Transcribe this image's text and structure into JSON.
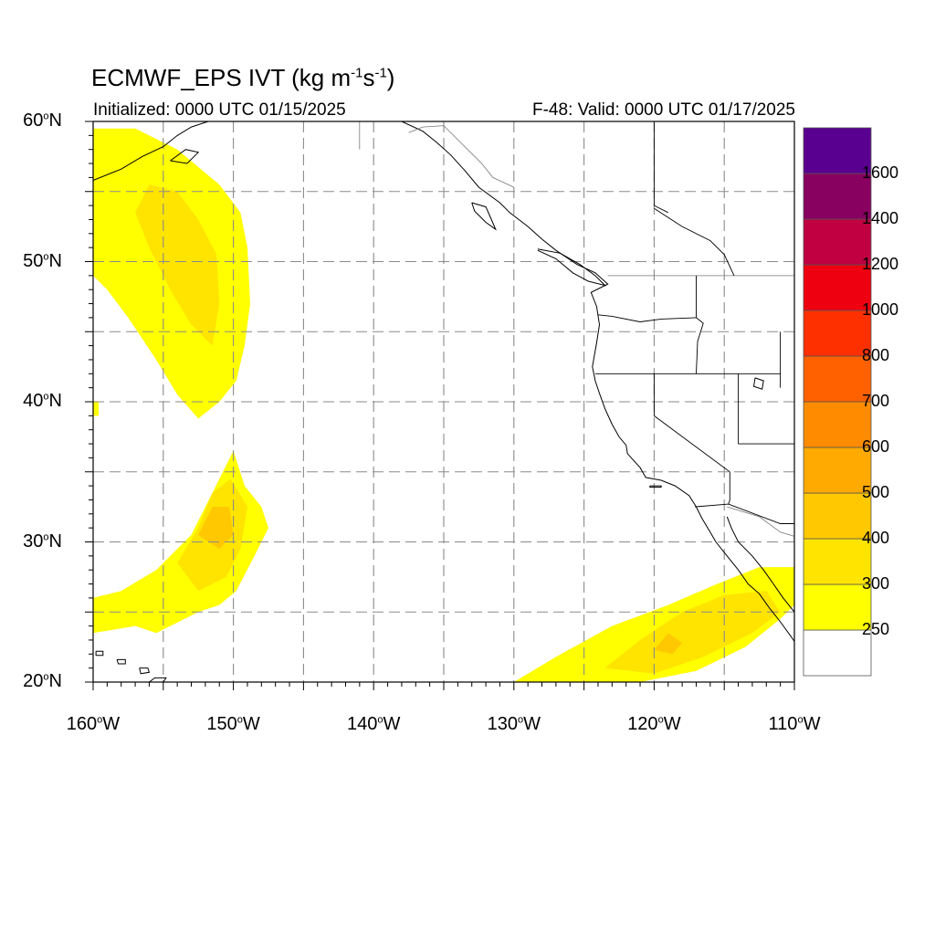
{
  "map": {
    "title_main": "ECMWF_EPS IVT (kg m",
    "title_exp1": "-1",
    "title_mid": "s",
    "title_exp2": "-1",
    "title_end": ")",
    "initialized": "Initialized: 0000 UTC 01/15/2025",
    "valid": "F-48: Valid: 0000 UTC 01/17/2025",
    "lat_labels": [
      {
        "value": 60,
        "text": "60",
        "deg": "o",
        "hemi": "N"
      },
      {
        "value": 50,
        "text": "50",
        "deg": "o",
        "hemi": "N"
      },
      {
        "value": 40,
        "text": "40",
        "deg": "o",
        "hemi": "N"
      },
      {
        "value": 30,
        "text": "30",
        "deg": "o",
        "hemi": "N"
      },
      {
        "value": 20,
        "text": "20",
        "deg": "o",
        "hemi": "N"
      }
    ],
    "lon_labels": [
      {
        "value": -160,
        "text": "160",
        "deg": "o",
        "hemi": "W"
      },
      {
        "value": -150,
        "text": "150",
        "deg": "o",
        "hemi": "W"
      },
      {
        "value": -140,
        "text": "140",
        "deg": "o",
        "hemi": "W"
      },
      {
        "value": -130,
        "text": "130",
        "deg": "o",
        "hemi": "W"
      },
      {
        "value": -120,
        "text": "120",
        "deg": "o",
        "hemi": "W"
      },
      {
        "value": -110,
        "text": "110",
        "deg": "o",
        "hemi": "W"
      }
    ],
    "extent": {
      "lon": [
        -160,
        -110
      ],
      "lat": [
        20,
        60
      ]
    }
  },
  "colorbar": {
    "colors": [
      "#ffffff",
      "#ffff00",
      "#ffe400",
      "#ffc800",
      "#ffaa00",
      "#ff8c00",
      "#ff6000",
      "#ff3000",
      "#ee0010",
      "#c00040",
      "#880060",
      "#5a0090"
    ],
    "labels": [
      "250",
      "300",
      "400",
      "500",
      "600",
      "700",
      "800",
      "1000",
      "1200",
      "1400",
      "1600"
    ]
  },
  "ivt_regions": [
    {
      "name": "north-pacific-plume",
      "level": 1,
      "lonlat": [
        [
          -160,
          59.5
        ],
        [
          -157,
          59.5
        ],
        [
          -154,
          58
        ],
        [
          -151,
          55.5
        ],
        [
          -149.5,
          53.5
        ],
        [
          -149,
          51
        ],
        [
          -148.8,
          47
        ],
        [
          -149.2,
          44
        ],
        [
          -149.8,
          41.5
        ],
        [
          -151,
          40
        ],
        [
          -152.5,
          38.8
        ],
        [
          -154,
          40.5
        ],
        [
          -155.5,
          43
        ],
        [
          -157.5,
          46
        ],
        [
          -159,
          48
        ],
        [
          -160,
          49
        ]
      ]
    },
    {
      "name": "north-pacific-plume-core",
      "level": 2,
      "lonlat": [
        [
          -156,
          55.5
        ],
        [
          -154,
          55
        ],
        [
          -152.5,
          53
        ],
        [
          -151.2,
          50.5
        ],
        [
          -151,
          47
        ],
        [
          -151.5,
          44
        ],
        [
          -153,
          45.5
        ],
        [
          -154.5,
          48
        ],
        [
          -156,
          51
        ],
        [
          -157,
          53.5
        ]
      ]
    },
    {
      "name": "subtropical-plume",
      "level": 1,
      "lonlat": [
        [
          -160,
          26
        ],
        [
          -158,
          26.5
        ],
        [
          -155.5,
          28
        ],
        [
          -153,
          30.5
        ],
        [
          -151.5,
          33.5
        ],
        [
          -150,
          36.5
        ],
        [
          -149.2,
          34
        ],
        [
          -148,
          32.5
        ],
        [
          -147.5,
          31
        ],
        [
          -148.5,
          29
        ],
        [
          -149.8,
          26.5
        ],
        [
          -151,
          25.5
        ],
        [
          -152.5,
          25
        ],
        [
          -154.5,
          24
        ],
        [
          -155.5,
          23.5
        ],
        [
          -157,
          24
        ],
        [
          -160,
          23.5
        ]
      ]
    },
    {
      "name": "subtropical-plume-mid",
      "level": 2,
      "lonlat": [
        [
          -154,
          28.5
        ],
        [
          -152.5,
          31
        ],
        [
          -151.5,
          33.5
        ],
        [
          -150.2,
          34.5
        ],
        [
          -149,
          32.5
        ],
        [
          -149.5,
          29.5
        ],
        [
          -150.5,
          27.5
        ],
        [
          -152.5,
          26.5
        ]
      ]
    },
    {
      "name": "subtropical-plume-core",
      "level": 3,
      "lonlat": [
        [
          -152.5,
          30.5
        ],
        [
          -151.5,
          32.5
        ],
        [
          -150.3,
          32.5
        ],
        [
          -150,
          30.5
        ],
        [
          -151,
          29.5
        ]
      ]
    },
    {
      "name": "baja-plume",
      "level": 1,
      "lonlat": [
        [
          -130,
          20
        ],
        [
          -121,
          20
        ],
        [
          -117,
          20.8
        ],
        [
          -113.5,
          22.5
        ],
        [
          -111,
          24.5
        ],
        [
          -110,
          25.5
        ],
        [
          -110,
          28.2
        ],
        [
          -112.5,
          28.2
        ],
        [
          -115.5,
          27
        ],
        [
          -119,
          25.5
        ],
        [
          -123,
          24
        ],
        [
          -127,
          21.8
        ]
      ]
    },
    {
      "name": "baja-plume-mid",
      "level": 2,
      "lonlat": [
        [
          -123.5,
          21
        ],
        [
          -120,
          20.6
        ],
        [
          -116.5,
          21.8
        ],
        [
          -113,
          23.5
        ],
        [
          -111,
          25
        ],
        [
          -112,
          26.5
        ],
        [
          -115,
          26.2
        ],
        [
          -118,
          25
        ],
        [
          -121,
          23
        ]
      ]
    },
    {
      "name": "baja-plume-core",
      "level": 3,
      "lonlat": [
        [
          -120,
          22.3
        ],
        [
          -118.7,
          22
        ],
        [
          -118,
          22.8
        ],
        [
          -119,
          23.5
        ]
      ]
    },
    {
      "name": "west-edge-speck",
      "level": 1,
      "lonlat": [
        [
          -160,
          39
        ],
        [
          -159.6,
          39
        ],
        [
          -159.6,
          40
        ],
        [
          -160,
          40
        ]
      ]
    }
  ],
  "coastlines": [
    {
      "name": "north-america-coast",
      "lonlat": [
        [
          -138,
          60
        ],
        [
          -136.5,
          59.3
        ],
        [
          -135.5,
          58.5
        ],
        [
          -134.5,
          57.6
        ],
        [
          -133.5,
          56.5
        ],
        [
          -132.5,
          55.3
        ],
        [
          -131,
          54.2
        ],
        [
          -130.3,
          53.5
        ],
        [
          -129,
          52.5
        ],
        [
          -128,
          51.6
        ],
        [
          -127,
          50.8
        ],
        [
          -125.5,
          49.8
        ],
        [
          -124.2,
          49.2
        ],
        [
          -123.3,
          48.4
        ],
        [
          -124.5,
          47.8
        ],
        [
          -124.1,
          46.8
        ],
        [
          -123.9,
          45.5
        ],
        [
          -124.1,
          44.2
        ],
        [
          -124.4,
          42.5
        ],
        [
          -124.2,
          41.5
        ],
        [
          -123.9,
          40.6
        ],
        [
          -123.5,
          39.5
        ],
        [
          -123,
          38.4
        ],
        [
          -122.5,
          37.5
        ],
        [
          -122,
          36.9
        ],
        [
          -121.9,
          36.3
        ],
        [
          -121,
          35.3
        ],
        [
          -120.6,
          34.6
        ],
        [
          -119.5,
          34.4
        ],
        [
          -118.5,
          34
        ],
        [
          -117.5,
          33.3
        ],
        [
          -117,
          32.5
        ],
        [
          -116.6,
          31.7
        ],
        [
          -116,
          30.7
        ],
        [
          -115.6,
          30
        ],
        [
          -114.8,
          29
        ],
        [
          -114,
          28
        ],
        [
          -113.3,
          27
        ],
        [
          -112.5,
          26.3
        ],
        [
          -111.8,
          25.3
        ],
        [
          -111,
          24.3
        ],
        [
          -110.2,
          23.2
        ],
        [
          -110,
          22.9
        ]
      ]
    },
    {
      "name": "gulf-of-california-coast",
      "lonlat": [
        [
          -114.8,
          31.8
        ],
        [
          -114.5,
          31
        ],
        [
          -114,
          30
        ],
        [
          -113,
          29
        ],
        [
          -112.2,
          28
        ],
        [
          -111.5,
          27
        ],
        [
          -110.8,
          26
        ],
        [
          -110,
          25
        ]
      ]
    },
    {
      "name": "vancouver-island",
      "lonlat": [
        [
          -128.3,
          50.8
        ],
        [
          -127,
          50.2
        ],
        [
          -125.8,
          49.2
        ],
        [
          -124.7,
          48.6
        ],
        [
          -123.5,
          48.3
        ],
        [
          -124.2,
          49
        ],
        [
          -125.3,
          49.8
        ],
        [
          -126.7,
          50.6
        ],
        [
          -128.3,
          50.9
        ]
      ]
    },
    {
      "name": "haida-gwaii",
      "lonlat": [
        [
          -133,
          54.2
        ],
        [
          -132,
          53.9
        ],
        [
          -131.6,
          53
        ],
        [
          -131.3,
          52.3
        ],
        [
          -132,
          52.8
        ],
        [
          -132.8,
          53.6
        ],
        [
          -133,
          54.2
        ]
      ]
    },
    {
      "name": "alaska-peninsula",
      "lonlat": [
        [
          -160,
          55.8
        ],
        [
          -158,
          56.6
        ],
        [
          -156.5,
          57.5
        ],
        [
          -155,
          58.2
        ],
        [
          -154,
          59
        ],
        [
          -153,
          59.6
        ],
        [
          -151.8,
          60
        ]
      ]
    },
    {
      "name": "kodiak",
      "lonlat": [
        [
          -154.5,
          57.2
        ],
        [
          -153.3,
          57
        ],
        [
          -152.5,
          57.8
        ],
        [
          -153.4,
          58
        ],
        [
          -154.5,
          57.2
        ]
      ]
    },
    {
      "name": "hawaii-big-island",
      "lonlat": [
        [
          -156,
          20
        ],
        [
          -155,
          20
        ],
        [
          -154.8,
          20.3
        ],
        [
          -155.6,
          20.3
        ],
        [
          -156,
          20
        ]
      ]
    },
    {
      "name": "hawaii-maui",
      "lonlat": [
        [
          -156.7,
          21
        ],
        [
          -156.1,
          21
        ],
        [
          -156,
          20.7
        ],
        [
          -156.6,
          20.6
        ],
        [
          -156.7,
          21
        ]
      ]
    },
    {
      "name": "hawaii-oahu",
      "lonlat": [
        [
          -158.3,
          21.6
        ],
        [
          -157.7,
          21.6
        ],
        [
          -157.7,
          21.3
        ],
        [
          -158.2,
          21.3
        ],
        [
          -158.3,
          21.6
        ]
      ]
    },
    {
      "name": "hawaii-kauai",
      "lonlat": [
        [
          -159.8,
          22.2
        ],
        [
          -159.3,
          22.2
        ],
        [
          -159.3,
          21.9
        ],
        [
          -159.8,
          21.9
        ],
        [
          -159.8,
          22.2
        ]
      ]
    },
    {
      "name": "great-salt-lake",
      "lonlat": [
        [
          -112.8,
          41.7
        ],
        [
          -112.2,
          41.5
        ],
        [
          -112.3,
          40.9
        ],
        [
          -112.9,
          41.1
        ],
        [
          -112.8,
          41.7
        ]
      ]
    },
    {
      "name": "channel-islands",
      "lonlat": [
        [
          -120.3,
          34
        ],
        [
          -119.5,
          34
        ],
        [
          -119.5,
          33.9
        ],
        [
          -120.3,
          33.9
        ],
        [
          -120.3,
          34
        ]
      ]
    }
  ],
  "borders": [
    {
      "name": "canada-alaska-border",
      "lonlat": [
        [
          -141,
          60
        ],
        [
          -141,
          58
        ]
      ],
      "thin": true
    },
    {
      "name": "alaska-panhandle-border",
      "lonlat": [
        [
          -137.5,
          59.2
        ],
        [
          -136.5,
          59.6
        ],
        [
          -135,
          59.7
        ],
        [
          -133.7,
          58.4
        ],
        [
          -132.3,
          57
        ],
        [
          -131.5,
          56
        ],
        [
          -130,
          55.3
        ]
      ],
      "thin": true
    },
    {
      "name": "us-canada-border",
      "lonlat": [
        [
          -123.3,
          49
        ],
        [
          -110,
          49
        ]
      ],
      "thin": true
    },
    {
      "name": "wa-or-border",
      "lonlat": [
        [
          -124,
          46.2
        ],
        [
          -123,
          46.1
        ],
        [
          -121,
          45.7
        ],
        [
          -119.5,
          45.9
        ],
        [
          -117,
          46
        ]
      ]
    },
    {
      "name": "wa-id-border",
      "lonlat": [
        [
          -117,
          49
        ],
        [
          -117,
          46
        ]
      ]
    },
    {
      "name": "or-id-border",
      "lonlat": [
        [
          -117,
          46
        ],
        [
          -116.5,
          45.6
        ],
        [
          -116.9,
          44.3
        ],
        [
          -117,
          42
        ]
      ]
    },
    {
      "name": "ca-or-nv-line",
      "lonlat": [
        [
          -124.2,
          42
        ],
        [
          -111,
          42
        ]
      ]
    },
    {
      "name": "ca-nv-border",
      "lonlat": [
        [
          -120,
          42
        ],
        [
          -120,
          39
        ],
        [
          -114.6,
          35
        ]
      ]
    },
    {
      "name": "nv-ut-border",
      "lonlat": [
        [
          -114,
          42
        ],
        [
          -114,
          37
        ]
      ]
    },
    {
      "name": "az-ut-line",
      "lonlat": [
        [
          -114,
          37
        ],
        [
          -110,
          37
        ]
      ]
    },
    {
      "name": "id-mt-wy",
      "lonlat": [
        [
          -111,
          45
        ],
        [
          -111,
          41
        ]
      ]
    },
    {
      "name": "az-ca-border",
      "lonlat": [
        [
          -114.6,
          35
        ],
        [
          -114.6,
          33
        ],
        [
          -114.7,
          32.7
        ]
      ]
    },
    {
      "name": "us-mexico-border",
      "lonlat": [
        [
          -117.1,
          32.5
        ],
        [
          -114.7,
          32.7
        ],
        [
          -111,
          31.3
        ],
        [
          -110,
          31.3
        ]
      ]
    },
    {
      "name": "mexico-states",
      "lonlat": [
        [
          -114.8,
          32.5
        ],
        [
          -112.5,
          31.8
        ],
        [
          -111,
          30.7
        ],
        [
          -110,
          30.4
        ]
      ],
      "thin": true
    },
    {
      "name": "bc-interior",
      "lonlat": [
        [
          -120,
          60
        ],
        [
          -120,
          54
        ],
        [
          -119,
          53.5
        ]
      ]
    },
    {
      "name": "alberta-shape",
      "lonlat": [
        [
          -120,
          53.8
        ],
        [
          -118,
          52.5
        ],
        [
          -116,
          51.5
        ],
        [
          -115,
          50.5
        ],
        [
          -114.3,
          49
        ]
      ]
    }
  ]
}
